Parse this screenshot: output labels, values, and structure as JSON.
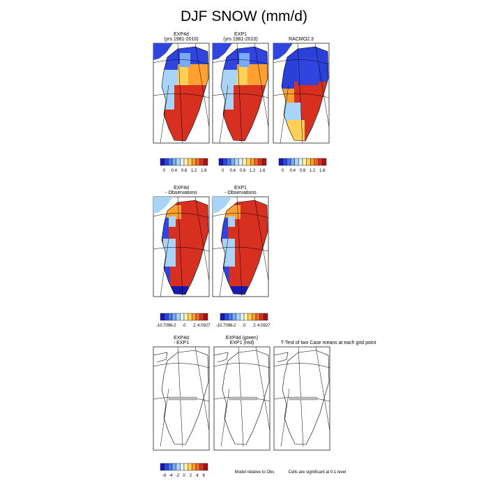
{
  "title": "DJF SNOW (mm/d)",
  "rows": [
    {
      "panels": [
        {
          "title": [
            "EXP4d",
            "(yrs 1981-2010)"
          ]
        },
        {
          "title": [
            "EXP1",
            "(yrs 1981-2010)"
          ]
        },
        {
          "title": [
            "RACMO2.3"
          ]
        }
      ],
      "colorbars": [
        {
          "labels": [
            "0",
            "0.4",
            "0.8",
            "1.2",
            "1.6"
          ]
        },
        {
          "labels": [
            "0",
            "0.4",
            "0.8",
            "1.2",
            "1.6"
          ]
        },
        {
          "labels": [
            "0",
            "0.4",
            "0.8",
            "1.2",
            "1.6"
          ]
        }
      ]
    },
    {
      "panels": [
        {
          "title": [
            "EXP4d",
            "- Observations"
          ]
        },
        {
          "title": [
            "EXP1",
            "- Observations"
          ]
        }
      ],
      "colorbars": [
        {
          "labels": [
            "-10.7096",
            "-2",
            ".0",
            ".2",
            "4.0927"
          ]
        },
        {
          "labels": [
            "-10.7096",
            "-2",
            ".0",
            ".2",
            "4.0927"
          ]
        }
      ]
    },
    {
      "panels": [
        {
          "title": [
            "EXP4d",
            "- EXP1"
          ]
        },
        {
          "title": [
            "EXP4d (green)",
            "EXP1 (red)"
          ]
        },
        {
          "title": [
            "T-Test of two Case means at each grid point"
          ]
        }
      ],
      "colorbars": [
        {
          "labels": [
            "-6",
            "-4",
            "-2",
            "0",
            "2",
            "4",
            "6"
          ]
        }
      ],
      "notes": [
        "Model relative to Obs",
        "Cells are significant at 0.1 level"
      ]
    }
  ]
}
